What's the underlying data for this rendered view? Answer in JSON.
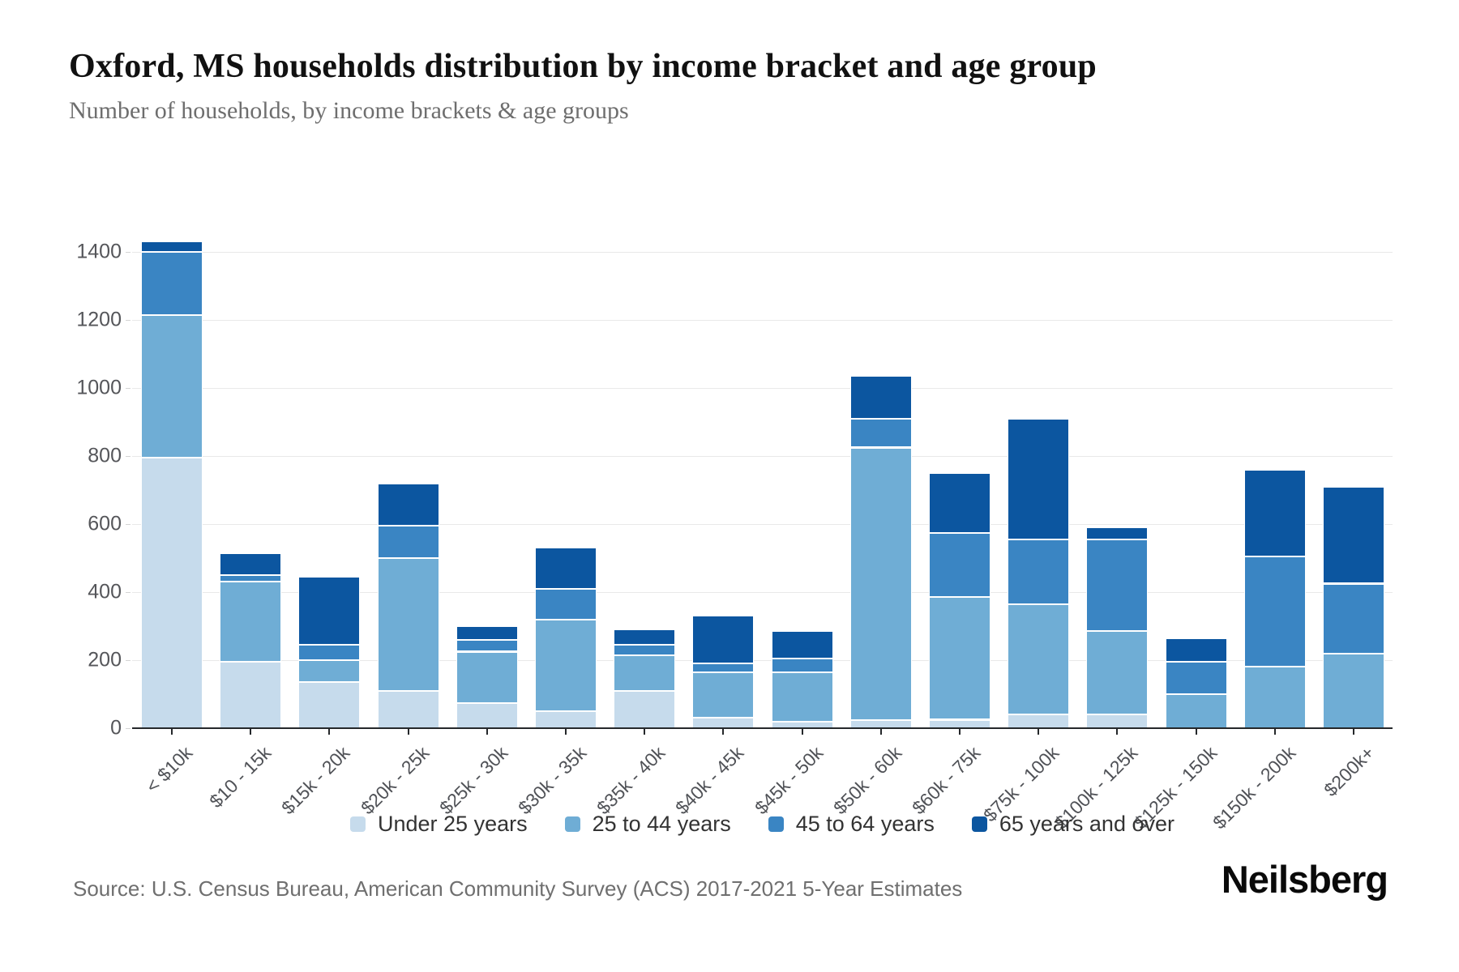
{
  "header": {
    "title": "Oxford, MS households distribution by income bracket and age group",
    "subtitle": "Number of households, by income brackets & age groups"
  },
  "source": {
    "text": "Source: U.S. Census Bureau, American Community Survey (ACS) 2017-2021 5-Year Estimates"
  },
  "branding": {
    "logo_text": "Neilsberg"
  },
  "chart_data": {
    "type": "bar",
    "stacked": true,
    "title": "Oxford, MS households distribution by income bracket and age group",
    "subtitle": "Number of households, by income brackets & age groups",
    "xlabel": "",
    "ylabel": "",
    "ylim": [
      0,
      1400
    ],
    "ytick_interval": 200,
    "ytick_labels": [
      "0",
      "200",
      "400",
      "600",
      "800",
      "1000",
      "1200",
      "1400"
    ],
    "grid": true,
    "legend_position": "bottom",
    "categories": [
      "< $10k",
      "$10 - 15k",
      "$15k - 20k",
      "$20k - 25k",
      "$25k - 30k",
      "$30k - 35k",
      "$35k - 40k",
      "$40k - 45k",
      "$45k - 50k",
      "$50k - 60k",
      "$60k - 75k",
      "$75k - 100k",
      "$100k - 125k",
      "$125k - 150k",
      "$150k - 200k",
      "$200k+"
    ],
    "series": [
      {
        "name": "Under 25 years",
        "color": "#c6dbec",
        "values": [
          795,
          195,
          135,
          110,
          75,
          50,
          110,
          30,
          20,
          25,
          25,
          40,
          40,
          0,
          0,
          0
        ]
      },
      {
        "name": "25 to 44 years",
        "color": "#6fadd5",
        "values": [
          420,
          235,
          65,
          390,
          150,
          270,
          105,
          135,
          145,
          800,
          360,
          325,
          245,
          100,
          180,
          220
        ]
      },
      {
        "name": "45 to 64 years",
        "color": "#3a85c3",
        "values": [
          185,
          20,
          45,
          95,
          35,
          90,
          30,
          25,
          40,
          85,
          190,
          190,
          270,
          95,
          325,
          205
        ]
      },
      {
        "name": "65 years and over",
        "color": "#0c56a0",
        "values": [
          30,
          65,
          200,
          125,
          40,
          120,
          45,
          140,
          80,
          125,
          175,
          355,
          35,
          70,
          255,
          285
        ]
      }
    ]
  }
}
